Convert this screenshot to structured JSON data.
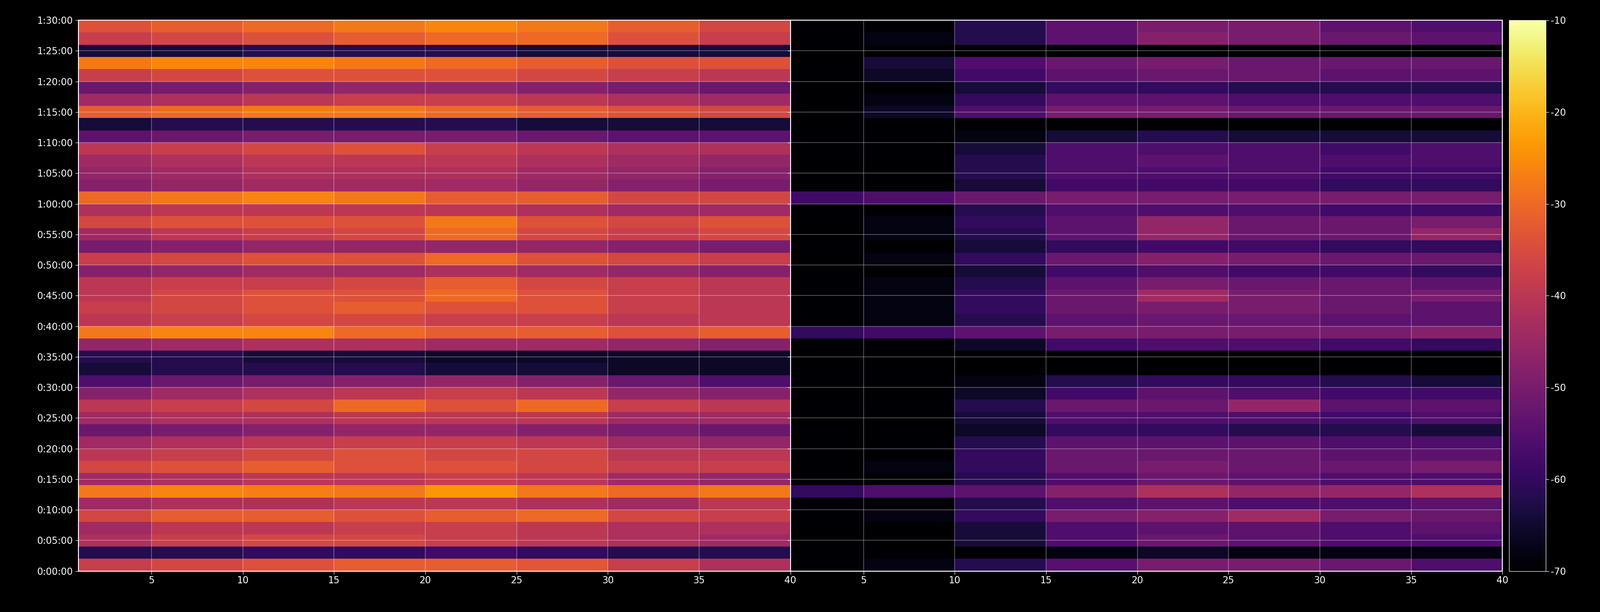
{
  "chart_data": {
    "type": "heatmap",
    "color": "inferno",
    "grid": true,
    "ylim": [
      0,
      5400
    ],
    "yticks": [
      {
        "value": 0,
        "label": "0:00:00"
      },
      {
        "value": 300,
        "label": "0:05:00"
      },
      {
        "value": 600,
        "label": "0:10:00"
      },
      {
        "value": 900,
        "label": "0:15:00"
      },
      {
        "value": 1200,
        "label": "0:20:00"
      },
      {
        "value": 1500,
        "label": "0:25:00"
      },
      {
        "value": 1800,
        "label": "0:30:00"
      },
      {
        "value": 2100,
        "label": "0:35:00"
      },
      {
        "value": 2400,
        "label": "0:40:00"
      },
      {
        "value": 2700,
        "label": "0:45:00"
      },
      {
        "value": 3000,
        "label": "0:50:00"
      },
      {
        "value": 3300,
        "label": "0:55:00"
      },
      {
        "value": 3600,
        "label": "1:00:00"
      },
      {
        "value": 3900,
        "label": "1:05:00"
      },
      {
        "value": 4200,
        "label": "1:10:00"
      },
      {
        "value": 4500,
        "label": "1:15:00"
      },
      {
        "value": 4800,
        "label": "1:20:00"
      },
      {
        "value": 5100,
        "label": "1:25:00"
      },
      {
        "value": 5400,
        "label": "1:30:00"
      }
    ],
    "y_bins": [
      0,
      120,
      240,
      360,
      480,
      600,
      720,
      840,
      960,
      1080,
      1200,
      1320,
      1440,
      1560,
      1680,
      1800,
      1920,
      2040,
      2160,
      2280,
      2400,
      2520,
      2640,
      2760,
      2880,
      3000,
      3120,
      3240,
      3360,
      3480,
      3600,
      3720,
      3840,
      3960,
      4080,
      4200,
      4320,
      4440,
      4560,
      4680,
      4800,
      4920,
      5040,
      5160,
      5280,
      5400
    ],
    "colorbar_range": [
      -70,
      -10
    ],
    "colorbar_ticks": [
      -70,
      -60,
      -50,
      -40,
      -30,
      -20,
      -10
    ],
    "panels": [
      {
        "xlim": [
          1,
          40
        ],
        "xticks": [
          5,
          10,
          15,
          20,
          25,
          30,
          35,
          40
        ],
        "x_bins": [
          1,
          5,
          10,
          15,
          20,
          25,
          30,
          35,
          40
        ],
        "cells": [
          [
            -38,
            -36,
            -34,
            -32,
            -32,
            -33,
            -38,
            -42
          ],
          [
            -62,
            -62,
            -60,
            -60,
            -58,
            -60,
            -62,
            -62
          ],
          [
            -42,
            -38,
            -36,
            -36,
            -38,
            -40,
            -42,
            -44
          ],
          [
            -44,
            -40,
            -40,
            -38,
            -38,
            -40,
            -42,
            -42
          ],
          [
            -36,
            -32,
            -32,
            -34,
            -32,
            -30,
            -36,
            -38
          ],
          [
            -44,
            -42,
            -42,
            -40,
            -40,
            -42,
            -44,
            -40
          ],
          [
            -28,
            -26,
            -27,
            -28,
            -24,
            -28,
            -30,
            -28
          ],
          [
            -44,
            -42,
            -40,
            -40,
            -38,
            -40,
            -44,
            -46
          ],
          [
            -36,
            -34,
            -32,
            -34,
            -34,
            -36,
            -38,
            -38
          ],
          [
            -40,
            -38,
            -36,
            -34,
            -36,
            -36,
            -40,
            -40
          ],
          [
            -44,
            -42,
            -40,
            -38,
            -38,
            -40,
            -44,
            -46
          ],
          [
            -52,
            -50,
            -48,
            -46,
            -46,
            -48,
            -50,
            -52
          ],
          [
            -44,
            -42,
            -42,
            -40,
            -40,
            -40,
            -44,
            -44
          ],
          [
            -40,
            -38,
            -36,
            -30,
            -34,
            -30,
            -38,
            -40
          ],
          [
            -48,
            -44,
            -42,
            -40,
            -38,
            -40,
            -46,
            -48
          ],
          [
            -56,
            -52,
            -50,
            -48,
            -46,
            -48,
            -52,
            -56
          ],
          [
            -64,
            -62,
            -62,
            -62,
            -64,
            -64,
            -66,
            -66
          ],
          [
            -62,
            -62,
            -64,
            -64,
            -66,
            -66,
            -66,
            -66
          ],
          [
            -46,
            -44,
            -42,
            -42,
            -44,
            -44,
            -46,
            -48
          ],
          [
            -28,
            -26,
            -26,
            -30,
            -32,
            -32,
            -34,
            -32
          ],
          [
            -40,
            -38,
            -36,
            -36,
            -38,
            -38,
            -40,
            -40
          ],
          [
            -38,
            -36,
            -34,
            -32,
            -34,
            -34,
            -38,
            -40
          ],
          [
            -40,
            -36,
            -34,
            -34,
            -30,
            -34,
            -38,
            -40
          ],
          [
            -40,
            -38,
            -38,
            -36,
            -32,
            -36,
            -38,
            -40
          ],
          [
            -48,
            -46,
            -44,
            -44,
            -42,
            -44,
            -46,
            -48
          ],
          [
            -38,
            -36,
            -34,
            -34,
            -30,
            -34,
            -36,
            -38
          ],
          [
            -50,
            -48,
            -46,
            -46,
            -46,
            -46,
            -48,
            -50
          ],
          [
            -44,
            -40,
            -38,
            -36,
            -30,
            -36,
            -38,
            -36
          ],
          [
            -36,
            -34,
            -34,
            -34,
            -28,
            -34,
            -36,
            -34
          ],
          [
            -42,
            -40,
            -40,
            -40,
            -40,
            -42,
            -44,
            -44
          ],
          [
            -30,
            -28,
            -26,
            -28,
            -32,
            -32,
            -36,
            -36
          ],
          [
            -48,
            -46,
            -44,
            -44,
            -44,
            -46,
            -48,
            -50
          ],
          [
            -46,
            -44,
            -42,
            -42,
            -42,
            -44,
            -46,
            -48
          ],
          [
            -44,
            -42,
            -40,
            -40,
            -40,
            -42,
            -44,
            -46
          ],
          [
            -40,
            -38,
            -36,
            -34,
            -38,
            -40,
            -42,
            -42
          ],
          [
            -54,
            -52,
            -50,
            -50,
            -50,
            -52,
            -54,
            -54
          ],
          [
            -64,
            -62,
            -62,
            -62,
            -62,
            -64,
            -64,
            -64
          ],
          [
            -32,
            -30,
            -28,
            -28,
            -30,
            -32,
            -34,
            -36
          ],
          [
            -44,
            -42,
            -40,
            -38,
            -38,
            -40,
            -42,
            -44
          ],
          [
            -52,
            -50,
            -48,
            -46,
            -46,
            -48,
            -50,
            -52
          ],
          [
            -38,
            -36,
            -34,
            -34,
            -34,
            -36,
            -38,
            -40
          ],
          [
            -28,
            -26,
            -26,
            -28,
            -30,
            -32,
            -34,
            -34
          ],
          [
            -64,
            -64,
            -62,
            -62,
            -62,
            -64,
            -64,
            -64
          ],
          [
            -38,
            -36,
            -34,
            -32,
            -30,
            -30,
            -34,
            -38
          ],
          [
            -34,
            -32,
            -30,
            -28,
            -26,
            -28,
            -32,
            -36
          ]
        ]
      },
      {
        "xlim": [
          1,
          40
        ],
        "xticks": [
          5,
          10,
          15,
          20,
          25,
          30,
          35,
          40
        ],
        "x_bins": [
          1,
          5,
          10,
          15,
          20,
          25,
          30,
          35,
          40
        ],
        "tick_labels": "x",
        "cells": [
          [
            -70,
            -68,
            -62,
            -55,
            -50,
            -50,
            -52,
            -56
          ],
          [
            -70,
            -70,
            -70,
            -68,
            -66,
            -68,
            -68,
            -68
          ],
          [
            -70,
            -70,
            -64,
            -56,
            -52,
            -54,
            -56,
            -56
          ],
          [
            -70,
            -70,
            -64,
            -56,
            -54,
            -54,
            -56,
            -54
          ],
          [
            -70,
            -68,
            -60,
            -50,
            -48,
            -44,
            -50,
            -52
          ],
          [
            -70,
            -70,
            -62,
            -56,
            -54,
            -56,
            -56,
            -54
          ],
          [
            -60,
            -56,
            -54,
            -48,
            -42,
            -46,
            -46,
            -42
          ],
          [
            -70,
            -70,
            -62,
            -56,
            -52,
            -54,
            -56,
            -56
          ],
          [
            -70,
            -68,
            -60,
            -52,
            -50,
            -52,
            -52,
            -50
          ],
          [
            -70,
            -70,
            -60,
            -52,
            -52,
            -52,
            -54,
            -54
          ],
          [
            -70,
            -70,
            -62,
            -54,
            -54,
            -54,
            -56,
            -56
          ],
          [
            -70,
            -70,
            -66,
            -60,
            -60,
            -62,
            -62,
            -64
          ],
          [
            -70,
            -70,
            -64,
            -56,
            -56,
            -56,
            -58,
            -56
          ],
          [
            -70,
            -70,
            -62,
            -52,
            -52,
            -46,
            -54,
            -54
          ],
          [
            -70,
            -70,
            -66,
            -58,
            -54,
            -56,
            -58,
            -58
          ],
          [
            -70,
            -70,
            -68,
            -62,
            -60,
            -60,
            -62,
            -64
          ],
          [
            -70,
            -70,
            -70,
            -70,
            -70,
            -70,
            -70,
            -70
          ],
          [
            -70,
            -70,
            -70,
            -70,
            -70,
            -70,
            -70,
            -70
          ],
          [
            -70,
            -70,
            -66,
            -58,
            -56,
            -56,
            -58,
            -60
          ],
          [
            -60,
            -58,
            -54,
            -50,
            -50,
            -50,
            -50,
            -48
          ],
          [
            -70,
            -68,
            -62,
            -54,
            -52,
            -52,
            -54,
            -54
          ],
          [
            -70,
            -68,
            -60,
            -52,
            -50,
            -50,
            -52,
            -54
          ],
          [
            -70,
            -68,
            -60,
            -52,
            -44,
            -50,
            -52,
            -50
          ],
          [
            -70,
            -68,
            -62,
            -54,
            -50,
            -52,
            -52,
            -54
          ],
          [
            -70,
            -70,
            -64,
            -58,
            -56,
            -58,
            -58,
            -60
          ],
          [
            -70,
            -68,
            -60,
            -52,
            -48,
            -50,
            -52,
            -52
          ],
          [
            -70,
            -70,
            -64,
            -60,
            -58,
            -58,
            -60,
            -60
          ],
          [
            -70,
            -68,
            -62,
            -54,
            -46,
            -52,
            -52,
            -46
          ],
          [
            -70,
            -68,
            -60,
            -54,
            -46,
            -52,
            -52,
            -50
          ],
          [
            -70,
            -70,
            -62,
            -56,
            -56,
            -56,
            -58,
            -58
          ],
          [
            -58,
            -56,
            -52,
            -50,
            -50,
            -50,
            -50,
            -50
          ],
          [
            -70,
            -70,
            -64,
            -58,
            -58,
            -58,
            -60,
            -60
          ],
          [
            -70,
            -70,
            -62,
            -56,
            -56,
            -56,
            -58,
            -58
          ],
          [
            -70,
            -70,
            -62,
            -56,
            -54,
            -56,
            -56,
            -56
          ],
          [
            -70,
            -70,
            -64,
            -56,
            -56,
            -56,
            -58,
            -56
          ],
          [
            -70,
            -70,
            -68,
            -64,
            -62,
            -64,
            -64,
            -64
          ],
          [
            -70,
            -70,
            -70,
            -70,
            -70,
            -70,
            -70,
            -70
          ],
          [
            -70,
            -66,
            -56,
            -50,
            -50,
            -52,
            -52,
            -52
          ],
          [
            -70,
            -68,
            -60,
            -54,
            -54,
            -56,
            -56,
            -56
          ],
          [
            -70,
            -70,
            -64,
            -60,
            -60,
            -62,
            -62,
            -62
          ],
          [
            -70,
            -66,
            -58,
            -54,
            -52,
            -52,
            -54,
            -54
          ],
          [
            -70,
            -64,
            -56,
            -52,
            -50,
            -52,
            -52,
            -52
          ],
          [
            -70,
            -70,
            -70,
            -70,
            -70,
            -70,
            -70,
            -70
          ],
          [
            -70,
            -68,
            -62,
            -54,
            -48,
            -50,
            -52,
            -54
          ],
          [
            -70,
            -70,
            -62,
            -54,
            -50,
            -50,
            -54,
            -56
          ]
        ]
      }
    ]
  }
}
